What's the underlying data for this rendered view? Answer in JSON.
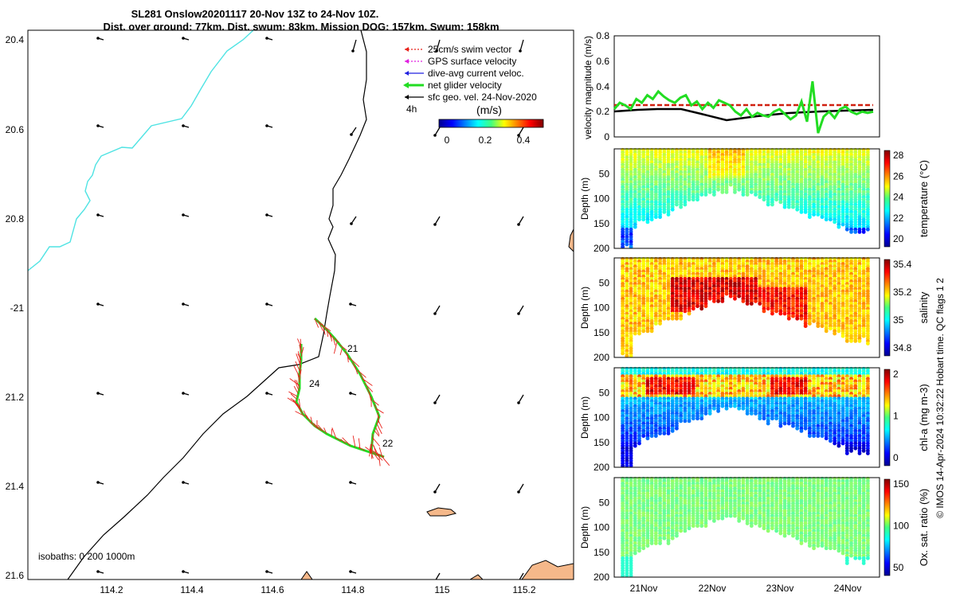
{
  "titles": {
    "line1": "SL281 Onslow20201117 20-Nov 13Z to 24-Nov 10Z.",
    "line2": "Dist. over ground: 77km. Dist. swum: 83km. Mission DOG: 157km. Swum: 158km"
  },
  "map": {
    "lat_ticks": [
      "20.4",
      "20.6",
      "20.8",
      "-21",
      "21.2",
      "21.4",
      "21.6"
    ],
    "lon_ticks": [
      "114.2",
      "114.4",
      "114.6",
      "114.8",
      "115",
      "115.2"
    ],
    "isobaths_label": "isobaths: 0   200  1000m",
    "day_labels": [
      "21",
      "22",
      "24"
    ],
    "legend": [
      {
        "label": "25cm/s swim vector",
        "color": "#e8221b"
      },
      {
        "label": "GPS surface velocity",
        "color": "#e020e0"
      },
      {
        "label": "dive-avg current veloc.",
        "color": "#2020e0"
      },
      {
        "label": "net glider velocity",
        "color": "#22dd22"
      },
      {
        "label": "sfc geo. vel. 24-Nov-2020",
        "color": "#000000"
      }
    ],
    "legend_extra": "4h",
    "colorbar": {
      "label": "(m/s)",
      "ticks": [
        "0",
        "0.2",
        "0.4"
      ],
      "range": [
        0,
        0.5
      ]
    }
  },
  "panels": {
    "time_ticks": [
      "21Nov",
      "22Nov",
      "23Nov",
      "24Nov"
    ],
    "depth_ticks": [
      "50",
      "100",
      "150",
      "200"
    ],
    "depth_label": "Depth (m)",
    "vel_label": "velocity magnitude (m/s)",
    "vel_ticks": [
      "0",
      "0.2",
      "0.4",
      "0.6",
      "0.8"
    ],
    "temp_label": "temperature (°C)",
    "temp_ticks": [
      "28",
      "26",
      "24",
      "22",
      "20"
    ],
    "sal_label": "salinity",
    "sal_ticks": [
      "35.4",
      "35.2",
      "35",
      "34.8"
    ],
    "chl_label": "chl-a (mg m-3)",
    "chl_ticks": [
      "2",
      "1",
      "0"
    ],
    "ox_label": "Ox. sat. ratio (%)",
    "ox_ticks": [
      "150",
      "100",
      "50"
    ],
    "footer": "© IMOS 14-Apr-2024 10:32:22 Hobart time. QC flags 1  2"
  },
  "colors": {
    "coast": "#4fe3e3",
    "land": "#f5b88a",
    "swim": "#e8221b",
    "net": "#22dd22",
    "ref": "#d02010",
    "sfc": "#000000"
  },
  "chart_data": [
    {
      "type": "line",
      "title": "velocity magnitude (m/s)",
      "xlabel": "",
      "ylabel": "velocity magnitude (m/s)",
      "x": [
        "20-Nov 13Z",
        "21Nov",
        "22Nov",
        "23Nov",
        "24Nov",
        "24-Nov 10Z"
      ],
      "ylim": [
        0,
        0.8
      ],
      "series": [
        {
          "name": "",
          "color": "#22dd22",
          "values": [
            0.22,
            0.28,
            0.33,
            0.16,
            0.24,
            0.22
          ]
        },
        {
          "name": "",
          "color": "#d02010",
          "values": [
            0.25,
            0.25,
            0.25,
            0.25,
            0.25,
            0.25
          ]
        },
        {
          "name": "",
          "color": "#000000",
          "values": [
            0.2,
            0.22,
            0.14,
            0.18,
            0.2,
            0.2
          ]
        }
      ]
    },
    {
      "type": "scatter",
      "ylabel": "Depth (m)",
      "colorbar": "temperature (°C)",
      "ylim": [
        200,
        0
      ],
      "clim": [
        19,
        29
      ]
    },
    {
      "type": "scatter",
      "ylabel": "Depth (m)",
      "colorbar": "salinity",
      "ylim": [
        200,
        0
      ],
      "clim": [
        34.7,
        35.5
      ]
    },
    {
      "type": "scatter",
      "ylabel": "Depth (m)",
      "colorbar": "chl-a (mg m-3)",
      "ylim": [
        200,
        0
      ],
      "clim": [
        0,
        2
      ]
    },
    {
      "type": "scatter",
      "ylabel": "Depth (m)",
      "colorbar": "Ox. sat. ratio (%)",
      "ylim": [
        200,
        0
      ],
      "clim": [
        25,
        175
      ]
    }
  ]
}
